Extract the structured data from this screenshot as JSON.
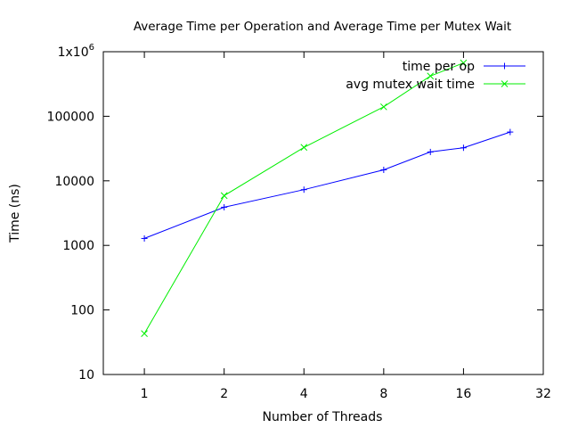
{
  "chart_data": {
    "type": "line",
    "title": "Average Time per Operation and Average Time per Mutex Wait",
    "xlabel": "Number of Threads",
    "ylabel": "Time (ns)",
    "x_scale": "log2",
    "y_scale": "log10",
    "xlim": [
      0.7,
      32
    ],
    "ylim": [
      10,
      1000000
    ],
    "x_ticks": [
      {
        "value": 1,
        "label": "1"
      },
      {
        "value": 2,
        "label": "2"
      },
      {
        "value": 4,
        "label": "4"
      },
      {
        "value": 8,
        "label": "8"
      },
      {
        "value": 16,
        "label": "16"
      },
      {
        "value": 32,
        "label": "32"
      }
    ],
    "y_ticks": [
      {
        "value": 10,
        "label": "10"
      },
      {
        "value": 100,
        "label": "100"
      },
      {
        "value": 1000,
        "label": "1000"
      },
      {
        "value": 10000,
        "label": "10000"
      },
      {
        "value": 100000,
        "label": "100000"
      },
      {
        "value": 1000000,
        "label": "1x10",
        "sup": "6"
      }
    ],
    "grid": false,
    "legend_position": "top-right",
    "series": [
      {
        "name": "time per op",
        "color": "#0000ff",
        "marker": "plus",
        "x": [
          1,
          2,
          4,
          8,
          12,
          16,
          24
        ],
        "y": [
          1280,
          3900,
          7300,
          14800,
          28000,
          32500,
          57000
        ]
      },
      {
        "name": "avg mutex wait time",
        "color": "#00ee00",
        "marker": "cross",
        "x": [
          1,
          2,
          4,
          8,
          12,
          16
        ],
        "y": [
          43,
          5900,
          33000,
          140000,
          420000,
          670000
        ]
      }
    ]
  }
}
